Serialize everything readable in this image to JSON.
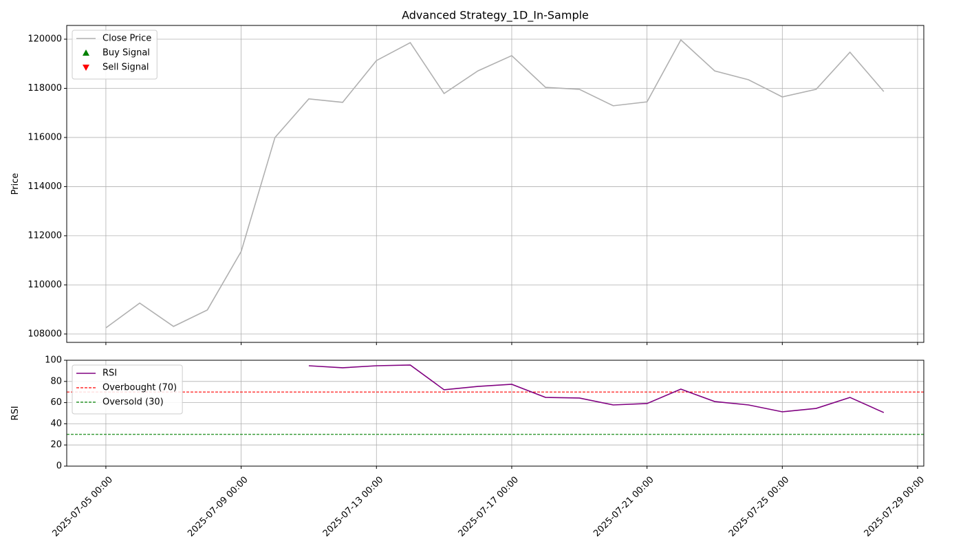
{
  "chart_data": [
    {
      "type": "line",
      "title": "Advanced Strategy_1D_In-Sample",
      "ylabel": "Price",
      "x": [
        "2025-07-05 00:00",
        "2025-07-06 00:00",
        "2025-07-07 00:00",
        "2025-07-08 00:00",
        "2025-07-09 00:00",
        "2025-07-10 00:00",
        "2025-07-11 00:00",
        "2025-07-12 00:00",
        "2025-07-13 00:00",
        "2025-07-14 00:00",
        "2025-07-15 00:00",
        "2025-07-16 00:00",
        "2025-07-17 00:00",
        "2025-07-18 00:00",
        "2025-07-19 00:00",
        "2025-07-20 00:00",
        "2025-07-21 00:00",
        "2025-07-22 00:00",
        "2025-07-23 00:00",
        "2025-07-24 00:00",
        "2025-07-25 00:00",
        "2025-07-26 00:00",
        "2025-07-27 00:00",
        "2025-07-28 00:00"
      ],
      "series": [
        {
          "name": "Close Price",
          "color": "#b0b0b0",
          "values": [
            108250,
            109260,
            108310,
            108980,
            111360,
            116000,
            117570,
            117430,
            119130,
            119860,
            117790,
            118710,
            119330,
            118040,
            117960,
            117290,
            117450,
            119970,
            118710,
            118350,
            117650,
            117960,
            119470,
            117870
          ]
        },
        {
          "name": "Buy Signal",
          "color": "green",
          "marker": "triangle-up",
          "values": [
            null,
            null,
            null,
            null,
            null,
            null,
            null,
            null,
            null,
            null,
            null,
            null,
            null,
            null,
            null,
            null,
            null,
            null,
            null,
            null,
            null,
            null,
            null,
            null
          ]
        },
        {
          "name": "Sell Signal",
          "color": "red",
          "marker": "triangle-down",
          "values": [
            null,
            null,
            null,
            null,
            null,
            null,
            null,
            null,
            null,
            null,
            null,
            null,
            null,
            null,
            null,
            null,
            null,
            null,
            null,
            null,
            null,
            null,
            null,
            null
          ]
        }
      ],
      "xlim": [
        "2025-07-03 20:13",
        "2025-07-29 04:24"
      ],
      "xticks": [
        "2025-07-05 00:00",
        "2025-07-09 00:00",
        "2025-07-13 00:00",
        "2025-07-17 00:00",
        "2025-07-21 00:00",
        "2025-07-25 00:00",
        "2025-07-29 00:00"
      ],
      "ylim": [
        107660,
        120560
      ],
      "yticks": [
        108000,
        110000,
        112000,
        114000,
        116000,
        118000,
        120000
      ],
      "grid": true,
      "legend": "upper left"
    },
    {
      "type": "line",
      "ylabel": "RSI",
      "x": [
        "2025-07-05 00:00",
        "2025-07-06 00:00",
        "2025-07-07 00:00",
        "2025-07-08 00:00",
        "2025-07-09 00:00",
        "2025-07-10 00:00",
        "2025-07-11 00:00",
        "2025-07-12 00:00",
        "2025-07-13 00:00",
        "2025-07-14 00:00",
        "2025-07-15 00:00",
        "2025-07-16 00:00",
        "2025-07-17 00:00",
        "2025-07-18 00:00",
        "2025-07-19 00:00",
        "2025-07-20 00:00",
        "2025-07-21 00:00",
        "2025-07-22 00:00",
        "2025-07-23 00:00",
        "2025-07-24 00:00",
        "2025-07-25 00:00",
        "2025-07-26 00:00",
        "2025-07-27 00:00",
        "2025-07-28 00:00"
      ],
      "series": [
        {
          "name": "RSI",
          "color": "purple",
          "values": [
            null,
            null,
            null,
            null,
            null,
            null,
            94.8,
            92.9,
            94.8,
            95.5,
            72.1,
            75.3,
            77.3,
            64.9,
            64.3,
            57.8,
            59.1,
            72.7,
            61.0,
            57.8,
            51.3,
            54.5,
            64.9,
            50.6
          ]
        }
      ],
      "hlines": [
        {
          "name": "Overbought (70)",
          "value": 70,
          "color": "red",
          "dashed": true
        },
        {
          "name": "Oversold (30)",
          "value": 30,
          "color": "green",
          "dashed": true
        }
      ],
      "xlim": [
        "2025-07-03 20:13",
        "2025-07-29 04:24"
      ],
      "xticks": [
        "2025-07-05 00:00",
        "2025-07-09 00:00",
        "2025-07-13 00:00",
        "2025-07-17 00:00",
        "2025-07-21 00:00",
        "2025-07-25 00:00",
        "2025-07-29 00:00"
      ],
      "ylim": [
        0,
        100
      ],
      "yticks": [
        0,
        20,
        40,
        60,
        80,
        100
      ],
      "grid": true,
      "legend": "upper left"
    }
  ]
}
